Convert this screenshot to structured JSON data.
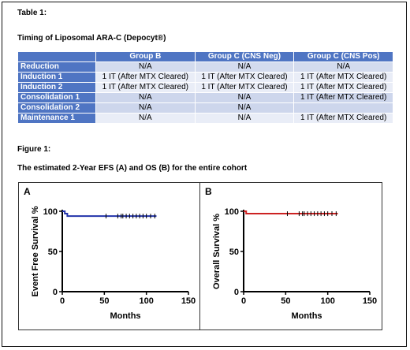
{
  "table_caption": "Table 1:",
  "table_title": "Timing of Liposomal ARA-C (Depocyt®)",
  "table": {
    "columns": [
      "",
      "Group B",
      "Group C (CNS Neg)",
      "Group C (CNS Pos)"
    ],
    "rows": [
      {
        "label": "Reduction",
        "cells": [
          "N/A",
          "N/A",
          "N/A"
        ]
      },
      {
        "label": "Induction 1",
        "cells": [
          "1 IT (After MTX Cleared)",
          "1 IT (After MTX Cleared)",
          "1 IT (After MTX Cleared)"
        ]
      },
      {
        "label": "Induction 2",
        "cells": [
          "1 IT (After MTX Cleared)",
          "1 IT (After MTX Cleared)",
          "1 IT (After MTX Cleared)"
        ]
      },
      {
        "label": "Consolidation 1",
        "cells": [
          "N/A",
          "N/A",
          "1 IT (After MTX Cleared)"
        ]
      },
      {
        "label": "Consolidation 2",
        "cells": [
          "N/A",
          "N/A",
          ""
        ]
      },
      {
        "label": "Maintenance 1",
        "cells": [
          "N/A",
          "N/A",
          "1 IT (After MTX Cleared)"
        ]
      }
    ]
  },
  "figure_caption": "Figure 1:",
  "figure_title": "The estimated 2-Year EFS (A) and OS (B) for the entire cohort",
  "chart_data": [
    {
      "type": "line",
      "panel": "A",
      "xlabel": "Months",
      "ylabel": "Event Free Survival %",
      "xlim": [
        0,
        150
      ],
      "ylim": [
        0,
        100
      ],
      "xticks": [
        "0",
        "50",
        "100",
        "150"
      ],
      "yticks": [
        "0",
        "50",
        "100"
      ],
      "color": "#2233aa",
      "series": [
        {
          "x": [
            0,
            3,
            3,
            6,
            6,
            112
          ],
          "y": [
            100,
            100,
            97,
            97,
            94,
            94
          ]
        }
      ],
      "censors": [
        52,
        66,
        70,
        72,
        76,
        80,
        84,
        88,
        92,
        96,
        100,
        105,
        110
      ]
    },
    {
      "type": "line",
      "panel": "B",
      "xlabel": "Months",
      "ylabel": "Overall Survival %",
      "xlim": [
        0,
        150
      ],
      "ylim": [
        0,
        100
      ],
      "xticks": [
        "0",
        "50",
        "100",
        "150"
      ],
      "yticks": [
        "0",
        "50",
        "100"
      ],
      "color": "#cc2222",
      "series": [
        {
          "x": [
            0,
            3,
            3,
            112
          ],
          "y": [
            100,
            100,
            97,
            97
          ]
        }
      ],
      "censors": [
        52,
        66,
        70,
        72,
        76,
        80,
        84,
        88,
        92,
        96,
        100,
        105,
        110
      ]
    }
  ]
}
